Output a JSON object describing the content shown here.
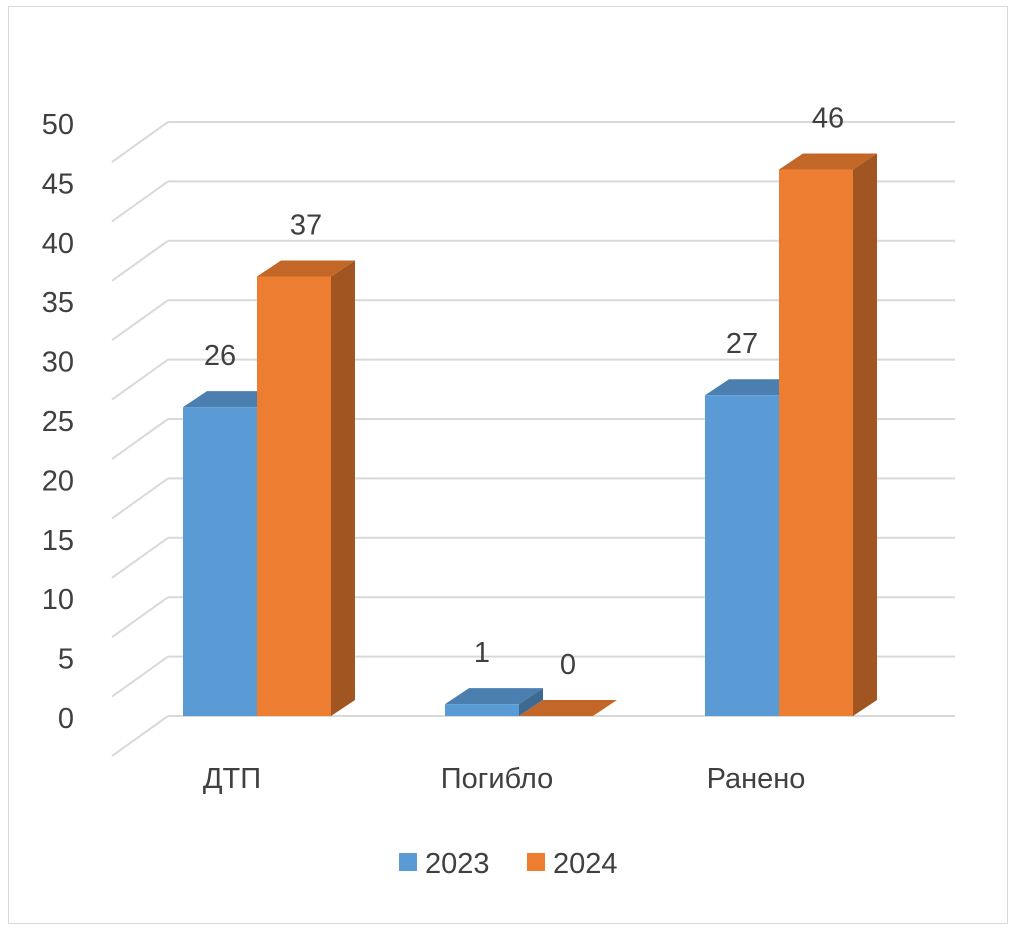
{
  "chart_data": {
    "type": "bar",
    "title": "",
    "xlabel": "",
    "ylabel": "",
    "categories": [
      "ДТП",
      "Погибло",
      "Ранено"
    ],
    "series": [
      {
        "name": "2023",
        "values": [
          26,
          1,
          27
        ],
        "color": "#5b9bd5"
      },
      {
        "name": "2024",
        "values": [
          37,
          0,
          46
        ],
        "color": "#ed7d31"
      }
    ],
    "ylim": [
      0,
      50
    ],
    "yticks": [
      0,
      5,
      10,
      15,
      20,
      25,
      30,
      35,
      40,
      45,
      50
    ],
    "grid": true,
    "legend": "bottom",
    "style": "3d-clustered-column"
  }
}
